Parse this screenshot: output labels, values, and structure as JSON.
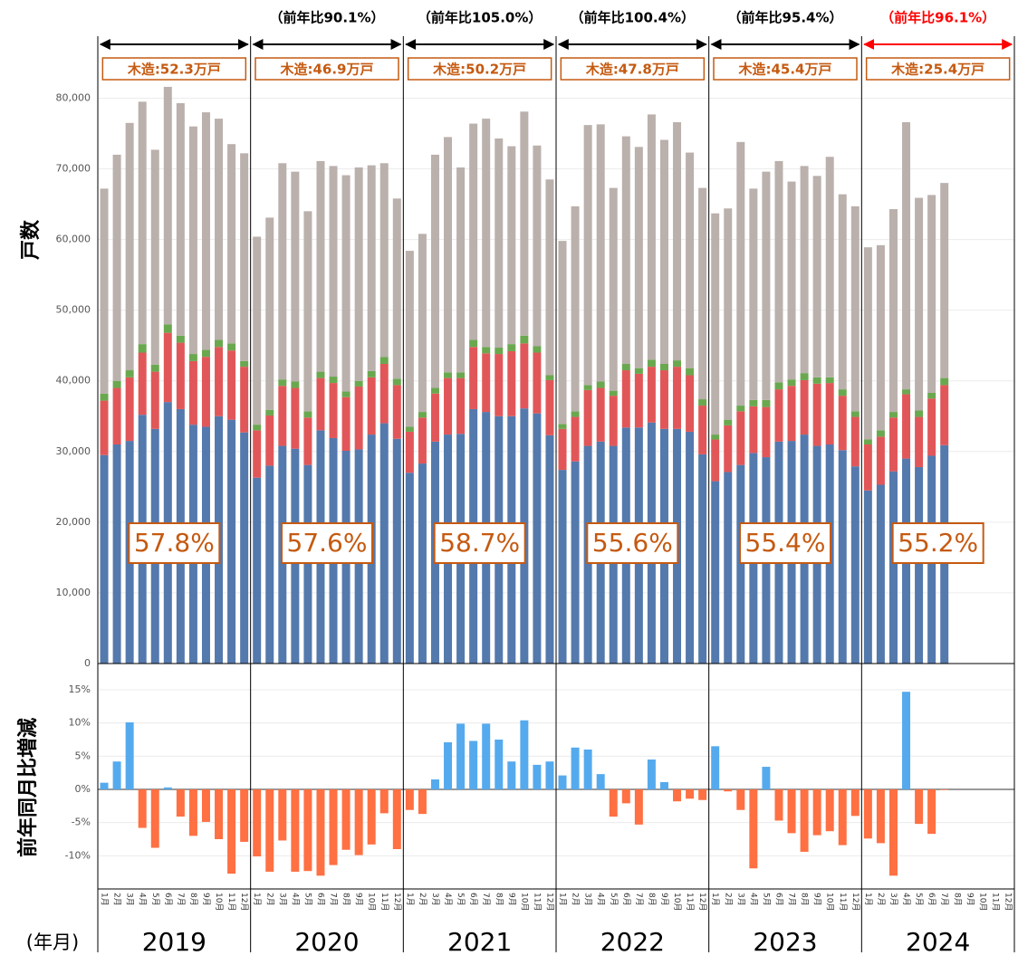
{
  "chart_data": [
    {
      "type": "stacked_bar",
      "ylabel": "戸数",
      "ylim": [
        0,
        88000
      ],
      "yticks": [
        0,
        {
          "value": 10000,
          "label": "10,000"
        },
        {
          "value": 20000,
          "label": "20,000"
        },
        {
          "value": 30000,
          "label": "30,000"
        },
        {
          "value": 40000,
          "label": "40,000"
        },
        {
          "value": 50000,
          "label": "50,000"
        },
        {
          "value": 60000,
          "label": "60,000"
        },
        {
          "value": 70000,
          "label": "70,000"
        },
        {
          "value": 80000,
          "label": "80,000"
        }
      ],
      "grid": true,
      "highlight_color": "#ff0000",
      "note_color": "#c55a11",
      "series": [
        {
          "color": "#5479ad",
          "values": [
            29500,
            31000,
            31500,
            35200,
            33200,
            37000,
            36000,
            33800,
            33500,
            35000,
            34500,
            32700,
            26300,
            28000,
            30800,
            30400,
            28100,
            33000,
            31900,
            30100,
            30300,
            32400,
            34000,
            31800,
            27000,
            28300,
            31400,
            32400,
            32500,
            36000,
            35600,
            35000,
            35000,
            36100,
            35400,
            32300,
            27400,
            28600,
            30800,
            31400,
            30800,
            33400,
            33400,
            34100,
            33200,
            33200,
            32800,
            29600,
            25800,
            27100,
            28100,
            29800,
            29200,
            31400,
            31500,
            32400,
            30800,
            31000,
            30200,
            27900,
            24500,
            25300,
            27200,
            29000,
            27800,
            29400,
            30900,
            null,
            null,
            null,
            null,
            null
          ]
        },
        {
          "color": "#e15759",
          "values": [
            7700,
            8000,
            9000,
            8800,
            8100,
            9800,
            9400,
            9000,
            9900,
            9800,
            9800,
            9300,
            6700,
            7100,
            8500,
            8600,
            6700,
            7400,
            7800,
            7600,
            8900,
            8100,
            8400,
            7600,
            5800,
            6500,
            6800,
            8000,
            7900,
            8800,
            8300,
            8800,
            9200,
            9200,
            8600,
            7800,
            5800,
            6300,
            7900,
            7600,
            7100,
            8100,
            7600,
            7900,
            8300,
            8800,
            8000,
            6900,
            5900,
            6600,
            7600,
            6600,
            7100,
            7400,
            7800,
            7700,
            8800,
            8700,
            7700,
            7000,
            6500,
            6800,
            7600,
            9100,
            7100,
            8100,
            8500,
            null,
            null,
            null,
            null,
            null
          ]
        },
        {
          "color": "#6aa84f",
          "values": [
            1000,
            1000,
            1000,
            1200,
            1000,
            1200,
            1000,
            1000,
            1000,
            1000,
            1000,
            800,
            800,
            800,
            900,
            900,
            900,
            900,
            900,
            800,
            800,
            900,
            1000,
            900,
            700,
            800,
            800,
            800,
            800,
            1000,
            900,
            900,
            1000,
            1100,
            900,
            700,
            700,
            800,
            700,
            900,
            700,
            900,
            800,
            1000,
            900,
            900,
            1000,
            900,
            700,
            800,
            800,
            900,
            1000,
            1000,
            900,
            1000,
            900,
            800,
            900,
            800,
            700,
            900,
            800,
            700,
            900,
            800,
            1000,
            null,
            null,
            null,
            null,
            null
          ]
        },
        {
          "color": "#bab0ac",
          "values": [
            29000,
            32000,
            35000,
            34300,
            30400,
            33600,
            32900,
            32200,
            33600,
            31300,
            28200,
            29400,
            26600,
            27200,
            30600,
            29700,
            28300,
            29800,
            29800,
            30600,
            30200,
            29100,
            27400,
            25500,
            24900,
            25200,
            33000,
            33300,
            29000,
            30600,
            32300,
            29600,
            28000,
            31700,
            28400,
            27700,
            25900,
            29000,
            36800,
            36400,
            28700,
            32200,
            31300,
            34700,
            31700,
            33700,
            30500,
            29900,
            31300,
            29900,
            37300,
            29900,
            32300,
            31300,
            28000,
            29300,
            28500,
            31200,
            27600,
            29000,
            27200,
            26200,
            28700,
            37800,
            30100,
            28000,
            27600,
            null,
            null,
            null,
            null,
            null
          ]
        }
      ],
      "groups": [
        {
          "wood": "木造:52.3万戸",
          "share": "57.8%"
        },
        {
          "yoy": "（前年比90.1%）",
          "wood": "木造:46.9万戸",
          "share": "57.6%"
        },
        {
          "yoy": "（前年比105.0%）",
          "wood": "木造:50.2万戸",
          "share": "58.7%"
        },
        {
          "yoy": "（前年比100.4%）",
          "wood": "木造:47.8万戸",
          "share": "55.6%"
        },
        {
          "yoy": "（前年比95.4%）",
          "wood": "木造:45.4万戸",
          "share": "55.4%"
        },
        {
          "yoy": "（前年比96.1%）",
          "wood": "木造:25.4万戸",
          "share": "55.2%",
          "highlight": true
        }
      ]
    },
    {
      "type": "bar",
      "ylabel": "前年同月比増減",
      "xlabel": "(年月)",
      "ylim": [
        -15,
        15
      ],
      "yticks": [
        {
          "value": -10,
          "label": "-10%"
        },
        {
          "value": -5,
          "label": "-5%"
        },
        {
          "value": 0,
          "label": "0%"
        },
        {
          "value": 5,
          "label": "5%"
        },
        {
          "value": 10,
          "label": "10%"
        },
        {
          "value": 15,
          "label": "15%"
        }
      ],
      "grid": true,
      "pos_color": "#55aaee",
      "neg_color": "#ff7043",
      "years": [
        "2019",
        "2020",
        "2021",
        "2022",
        "2023",
        "2024"
      ],
      "categories": [
        "1月",
        "2月",
        "3月",
        "4月",
        "5月",
        "6月",
        "7月",
        "8月",
        "9月",
        "10月",
        "11月",
        "12月",
        "1月",
        "2月",
        "3月",
        "4月",
        "5月",
        "6月",
        "7月",
        "8月",
        "9月",
        "10月",
        "11月",
        "12月",
        "1月",
        "2月",
        "3月",
        "4月",
        "5月",
        "6月",
        "7月",
        "8月",
        "9月",
        "10月",
        "11月",
        "12月",
        "1月",
        "2月",
        "3月",
        "4月",
        "5月",
        "6月",
        "7月",
        "8月",
        "9月",
        "10月",
        "11月",
        "12月",
        "1月",
        "2月",
        "3月",
        "4月",
        "5月",
        "6月",
        "7月",
        "8月",
        "9月",
        "10月",
        "11月",
        "12月",
        "1月",
        "2月",
        "3月",
        "4月",
        "5月",
        "6月",
        "7月",
        "8月",
        "9月",
        "10月",
        "11月",
        "12月"
      ],
      "values": [
        1.0,
        4.2,
        10.1,
        -5.8,
        -8.8,
        0.3,
        -4.1,
        -7.0,
        -4.9,
        -7.5,
        -12.7,
        -7.9,
        -10.1,
        -12.4,
        -7.7,
        -12.4,
        -12.3,
        -13.0,
        -11.4,
        -9.1,
        -9.9,
        -8.3,
        -3.6,
        -9.0,
        -3.1,
        -3.7,
        1.5,
        7.1,
        9.9,
        7.3,
        9.9,
        7.5,
        4.2,
        10.4,
        3.7,
        4.2,
        2.1,
        6.3,
        6.0,
        2.3,
        -4.1,
        -2.1,
        -5.3,
        4.5,
        1.1,
        -1.8,
        -1.4,
        -1.6,
        6.5,
        -0.3,
        -3.1,
        -11.9,
        3.4,
        -4.7,
        -6.6,
        -9.4,
        -6.9,
        -6.3,
        -8.4,
        -4.0,
        -7.4,
        -8.1,
        -13.0,
        14.7,
        -5.2,
        -6.7,
        -0.1,
        null,
        null,
        null,
        null,
        null
      ]
    }
  ]
}
